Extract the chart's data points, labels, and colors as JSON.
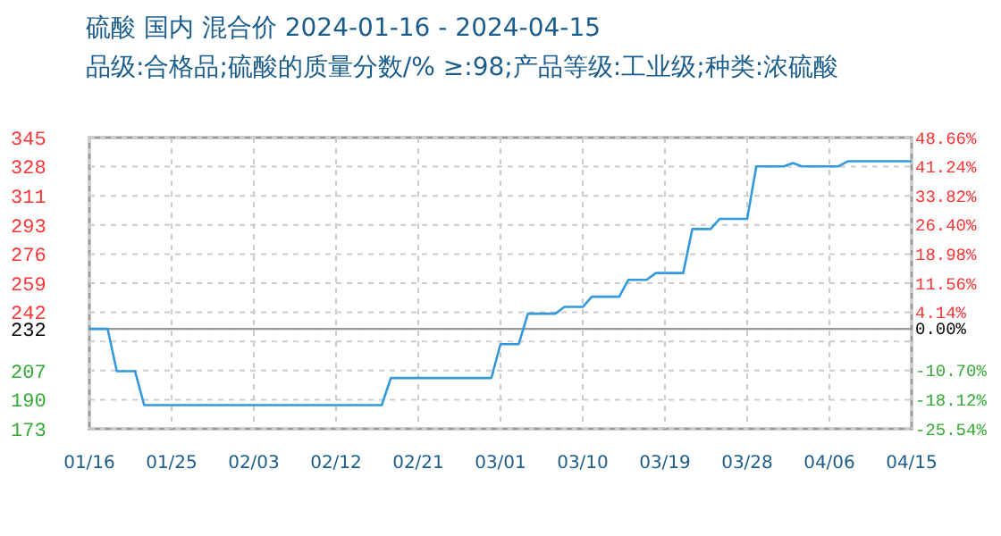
{
  "chart_data": {
    "type": "line",
    "title": "硫酸 国内 混合价 2024-01-16 - 2024-04-15",
    "subtitle": "品级:合格品;硫酸的质量分数/%  ≥:98;产品等级:工业级;种类:浓硫酸",
    "x": [
      "2024-01-16",
      "2024-01-18",
      "2024-01-19",
      "2024-01-21",
      "2024-01-22",
      "2024-02-17",
      "2024-02-18",
      "2024-02-29",
      "2024-03-01",
      "2024-03-03",
      "2024-03-04",
      "2024-03-07",
      "2024-03-08",
      "2024-03-10",
      "2024-03-11",
      "2024-03-14",
      "2024-03-15",
      "2024-03-17",
      "2024-03-18",
      "2024-03-21",
      "2024-03-22",
      "2024-03-24",
      "2024-03-25",
      "2024-03-28",
      "2024-03-29",
      "2024-04-01",
      "2024-04-02",
      "2024-04-03",
      "2024-04-07",
      "2024-04-08",
      "2024-04-15"
    ],
    "series": [
      {
        "color": "#3399dd",
        "values": [
          232,
          232,
          207,
          207,
          187,
          187,
          203,
          203,
          223,
          223,
          241,
          241,
          245,
          245,
          251,
          251,
          261,
          261,
          265,
          265,
          291,
          291,
          297,
          297,
          328,
          328,
          330,
          328,
          328,
          331,
          331
        ]
      }
    ],
    "xlim": [
      "2024-01-16",
      "2024-04-15"
    ],
    "xticks": [
      {
        "value": "2024-01-16",
        "label": "01/16"
      },
      {
        "value": "2024-01-25",
        "label": "01/25"
      },
      {
        "value": "2024-02-03",
        "label": "02/03"
      },
      {
        "value": "2024-02-12",
        "label": "02/12"
      },
      {
        "value": "2024-02-21",
        "label": "02/21"
      },
      {
        "value": "2024-03-01",
        "label": "03/01"
      },
      {
        "value": "2024-03-10",
        "label": "03/10"
      },
      {
        "value": "2024-03-19",
        "label": "03/19"
      },
      {
        "value": "2024-03-28",
        "label": "03/28"
      },
      {
        "value": "2024-04-06",
        "label": "04/06"
      },
      {
        "value": "2024-04-15",
        "label": "04/15"
      }
    ],
    "ylim": [
      173,
      345
    ],
    "yticks": [
      173,
      {
        "value": 190.2,
        "label": "190"
      },
      {
        "value": 207.4,
        "label": "207"
      },
      {
        "value": 224.6,
        "label": null
      },
      232,
      {
        "value": 241.8,
        "label": "242"
      },
      259,
      {
        "value": 276.2,
        "label": "276"
      },
      {
        "value": 293.4,
        "label": "293"
      },
      {
        "value": 310.6,
        "label": "311"
      },
      {
        "value": 327.8,
        "label": "328"
      },
      345
    ],
    "y2lim": [
      -25.54,
      48.66
    ],
    "y2ticks": [
      {
        "value": -25.54,
        "label": "-25.54%"
      },
      {
        "value": -18.12,
        "label": "-18.12%"
      },
      {
        "value": -10.7,
        "label": "-10.70%"
      },
      {
        "value": 0,
        "label": "0.00%"
      },
      {
        "value": 4.14,
        "label": "4.14%"
      },
      {
        "value": 11.56,
        "label": "11.56%"
      },
      {
        "value": 18.98,
        "label": "18.98%"
      },
      {
        "value": 26.4,
        "label": "26.40%"
      },
      {
        "value": 33.82,
        "label": "33.82%"
      },
      {
        "value": 41.24,
        "label": "41.24%"
      },
      {
        "value": 48.66,
        "label": "48.66%"
      }
    ],
    "ref_lines": [
      {
        "axis": "y",
        "value": 232,
        "color": "#999999"
      }
    ],
    "grid": true,
    "line_style": "solid",
    "marker": "none"
  }
}
